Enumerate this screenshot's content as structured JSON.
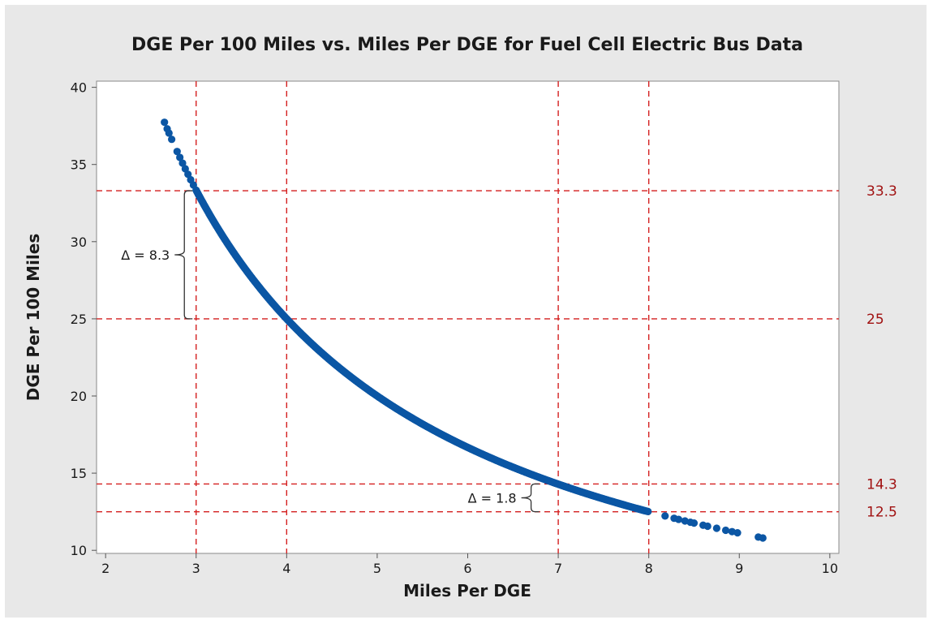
{
  "chart_data": {
    "type": "scatter",
    "title": "DGE Per 100 Miles vs. Miles Per DGE for Fuel Cell Electric Bus Data",
    "xlabel": "Miles Per DGE",
    "ylabel": "DGE Per 100 Miles",
    "xlim": [
      1.9,
      10.1
    ],
    "ylim": [
      9.8,
      40.4
    ],
    "x_ticks": [
      2,
      3,
      4,
      5,
      6,
      7,
      8,
      9,
      10
    ],
    "y_ticks": [
      10,
      15,
      20,
      25,
      30,
      35,
      40
    ],
    "grid": false,
    "legend": "none",
    "series": [
      {
        "relation": "y = 100 / x",
        "x_range": [
          2.65,
          9.28
        ],
        "isolated_x": [
          2.65,
          2.68,
          2.7,
          2.73,
          2.79,
          2.82,
          2.85,
          2.88,
          2.91,
          2.94,
          2.97,
          8.18,
          8.28,
          8.33,
          8.4,
          8.46,
          8.5,
          8.6,
          8.65,
          8.75,
          8.85,
          8.92,
          8.98,
          9.21,
          9.26
        ],
        "color": "#0b56a4"
      }
    ],
    "reference_lines": {
      "vertical": [
        3,
        4,
        7,
        8
      ],
      "horizontal": [
        {
          "value": 33.3,
          "label": "33.3"
        },
        {
          "value": 25,
          "label": "25"
        },
        {
          "value": 14.3,
          "label": "14.3"
        },
        {
          "value": 12.5,
          "label": "12.5"
        }
      ],
      "color": "#d41f1f"
    },
    "annotations": [
      {
        "text": "Δ = 8.3",
        "y_from": 25,
        "y_to": 33.3,
        "bracket_x": 2.87
      },
      {
        "text": "Δ = 1.8",
        "y_from": 12.5,
        "y_to": 14.3,
        "bracket_x": 6.7
      }
    ]
  }
}
